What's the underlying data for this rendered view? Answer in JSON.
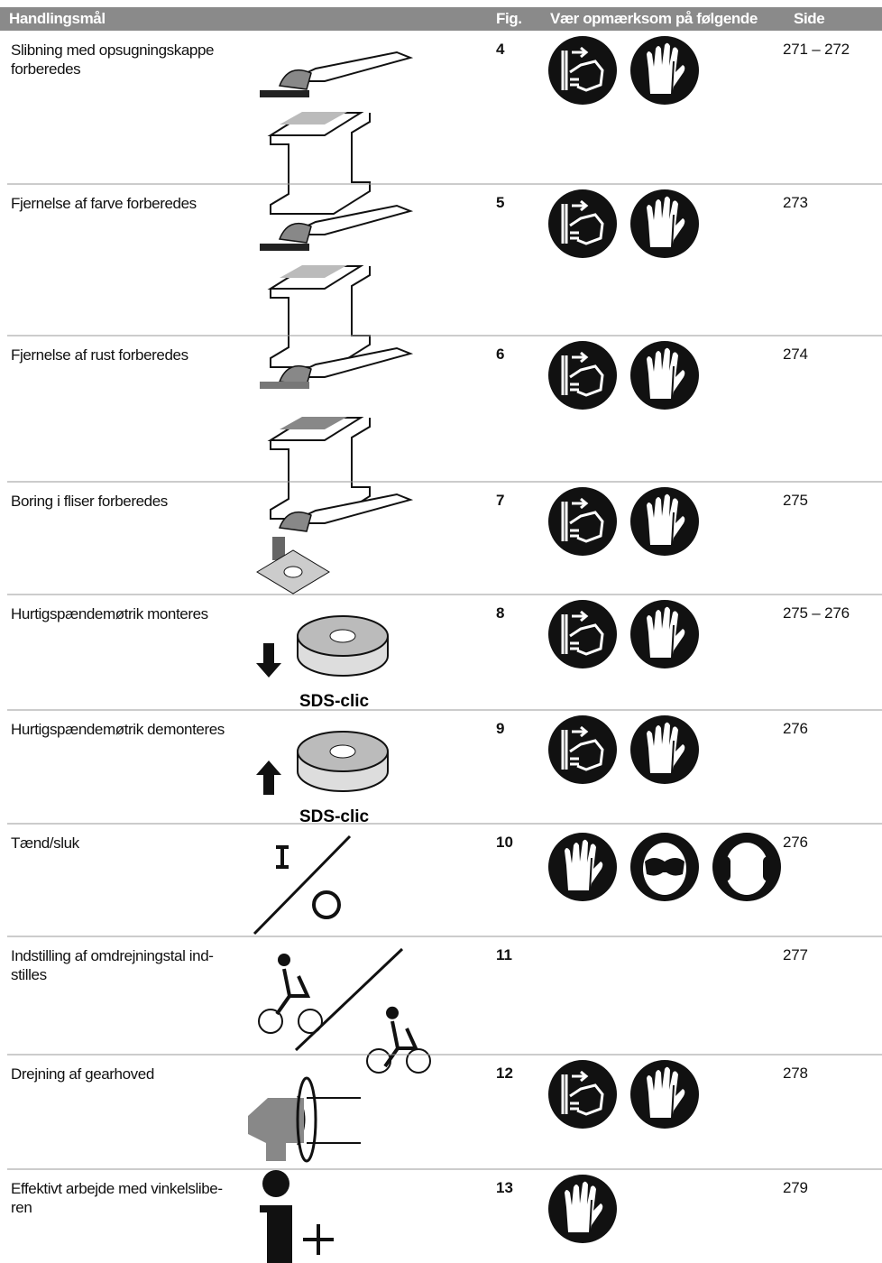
{
  "table": {
    "header": [
      "Handlingsmål",
      "Fig.",
      "Vær opmærksom på følgende",
      "Side"
    ],
    "rows": [
      [
        "Slibning med opsugningskappe forberedes",
        "4",
        "271 – 272"
      ],
      [
        "Fjernelse af farve forberedes",
        "5",
        "273"
      ],
      [
        "Fjernelse af rust forberedes",
        "6",
        "274"
      ],
      [
        "Boring i fliser forberedes",
        "7",
        "275"
      ],
      [
        "Hurtigspændemøtrik monteres",
        "8",
        "275 – 276"
      ],
      [
        "Hurtigspændemøtrik demonteres",
        "9",
        "276"
      ],
      [
        "Tænd/sluk",
        "10",
        "276"
      ],
      [
        "Indstilling af omdrejningstal ind-\nstilles",
        "11",
        "277"
      ],
      [
        "Drejning af gearhoved",
        "12",
        "278"
      ],
      [
        "Effektivt arbejde med vinkelslibe-\nren",
        "13",
        "279"
      ]
    ],
    "figure_labels": {
      "4": "SDS-clic",
      "5": "SDS-clic"
    }
  }
}
